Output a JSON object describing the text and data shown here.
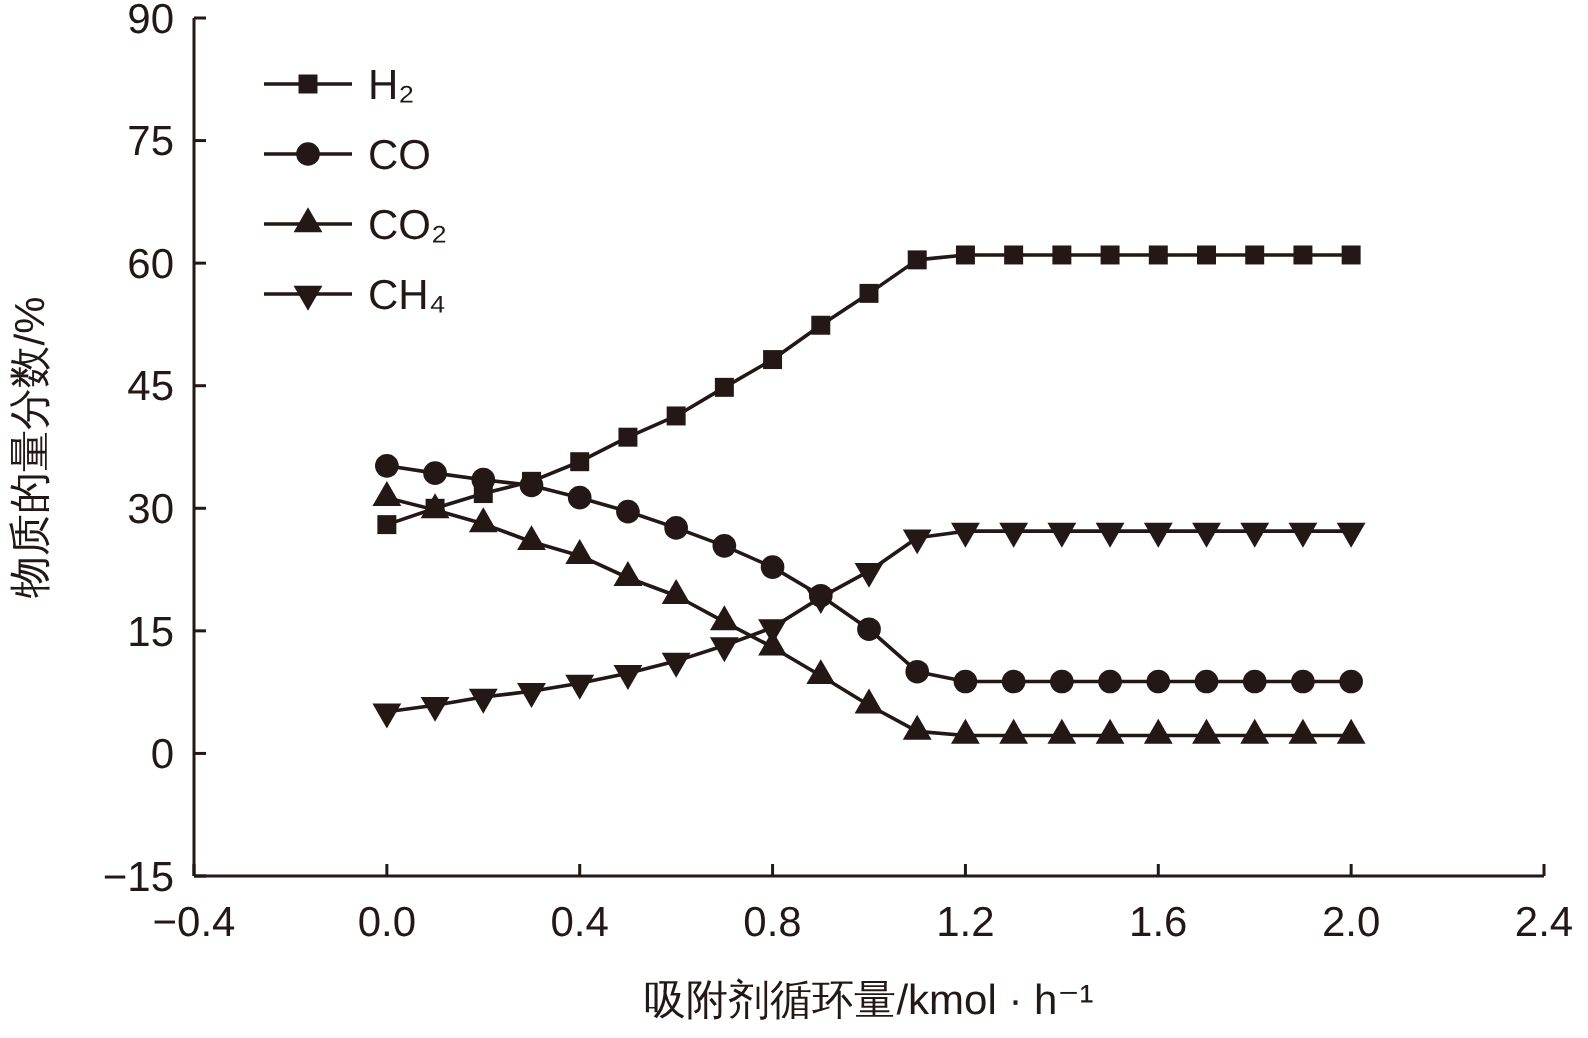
{
  "chart_data": {
    "type": "line",
    "xlabel": "吸附剂循环量/kmol · h⁻¹",
    "ylabel": "物质的量分数/%",
    "x": [
      0,
      0.1,
      0.2,
      0.3,
      0.4,
      0.5,
      0.6,
      0.7,
      0.8,
      0.9,
      1.0,
      1.1,
      1.2,
      1.3,
      1.4,
      1.5,
      1.6,
      1.7,
      1.8,
      1.9,
      2.0
    ],
    "series": [
      {
        "name": "H₂",
        "color": "#231815",
        "marker": "square",
        "values": [
          28,
          30,
          31.8,
          33.3,
          35.7,
          38.7,
          41.3,
          44.8,
          48.2,
          52.4,
          56.3,
          60.4,
          61,
          61,
          61,
          61,
          61,
          61,
          61,
          61,
          61
        ]
      },
      {
        "name": "CO",
        "color": "#231815",
        "marker": "circle",
        "values": [
          35.2,
          34.3,
          33.5,
          32.8,
          31.3,
          29.6,
          27.6,
          25.4,
          22.8,
          19.3,
          15.2,
          10,
          8.8,
          8.8,
          8.8,
          8.8,
          8.8,
          8.8,
          8.8,
          8.8,
          8.8
        ]
      },
      {
        "name": "CO₂",
        "color": "#231815",
        "marker": "triangle",
        "values": [
          31.3,
          29.8,
          28.1,
          25.9,
          24.2,
          21.5,
          19.3,
          16.1,
          13,
          9.5,
          5.9,
          2.7,
          2.2,
          2.2,
          2.2,
          2.2,
          2.2,
          2.2,
          2.2,
          2.2,
          2.2
        ]
      },
      {
        "name": "CH₄",
        "color": "#231815",
        "marker": "triangle-down",
        "values": [
          5.1,
          5.9,
          6.9,
          7.6,
          8.6,
          9.8,
          11.3,
          13.2,
          15.4,
          19.1,
          22.3,
          26.4,
          27.2,
          27.2,
          27.2,
          27.2,
          27.2,
          27.2,
          27.2,
          27.2,
          27.2
        ]
      }
    ],
    "xlim": [
      -0.4,
      2.4
    ],
    "xticks": [
      {
        "value": -0.4,
        "label": "−0.4"
      },
      {
        "value": 0,
        "label": "0.0"
      },
      0.4,
      0.8,
      1.2,
      1.6,
      {
        "value": 2,
        "label": "2.0"
      },
      2.4
    ],
    "ylim": [
      -15,
      90
    ],
    "yticks": [
      {
        "value": -15,
        "label": "−15"
      },
      0,
      15,
      30,
      45,
      60,
      75,
      90
    ],
    "grid": false,
    "legend": "top left",
    "line_style": "solid"
  }
}
